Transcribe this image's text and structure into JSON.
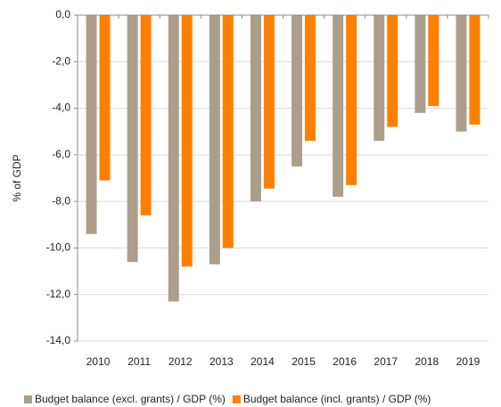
{
  "chart_data": {
    "type": "bar",
    "y_label": "% of GDP",
    "categories": [
      "2010",
      "2011",
      "2012",
      "2013",
      "2014",
      "2015",
      "2016",
      "2017",
      "2018",
      "2019"
    ],
    "series": [
      {
        "name": "Budget balance (excl. grants) / GDP (%)",
        "color": "#ab9f8b",
        "values": [
          -9.4,
          -10.6,
          -12.3,
          -10.7,
          -8.0,
          -6.5,
          -7.8,
          -5.4,
          -4.2,
          -5.0
        ]
      },
      {
        "name": "Budget balance (incl. grants) / GDP (%)",
        "color": "#ff7f00",
        "values": [
          -7.1,
          -8.6,
          -10.8,
          -10.0,
          -7.45,
          -5.4,
          -7.3,
          -4.8,
          -3.9,
          -4.7
        ]
      }
    ],
    "ylim": [
      -14,
      0
    ],
    "yticks": [
      {
        "value": 0,
        "label": "0,0"
      },
      {
        "value": -2,
        "label": "-2,0"
      },
      {
        "value": -4,
        "label": "-4,0"
      },
      {
        "value": -6,
        "label": "-6,0"
      },
      {
        "value": -8,
        "label": "-8,0"
      },
      {
        "value": -10,
        "label": "-10,0"
      },
      {
        "value": -12,
        "label": "-12,0"
      },
      {
        "value": -14,
        "label": "-14,0"
      }
    ],
    "grid": true,
    "legend": "bottom"
  }
}
